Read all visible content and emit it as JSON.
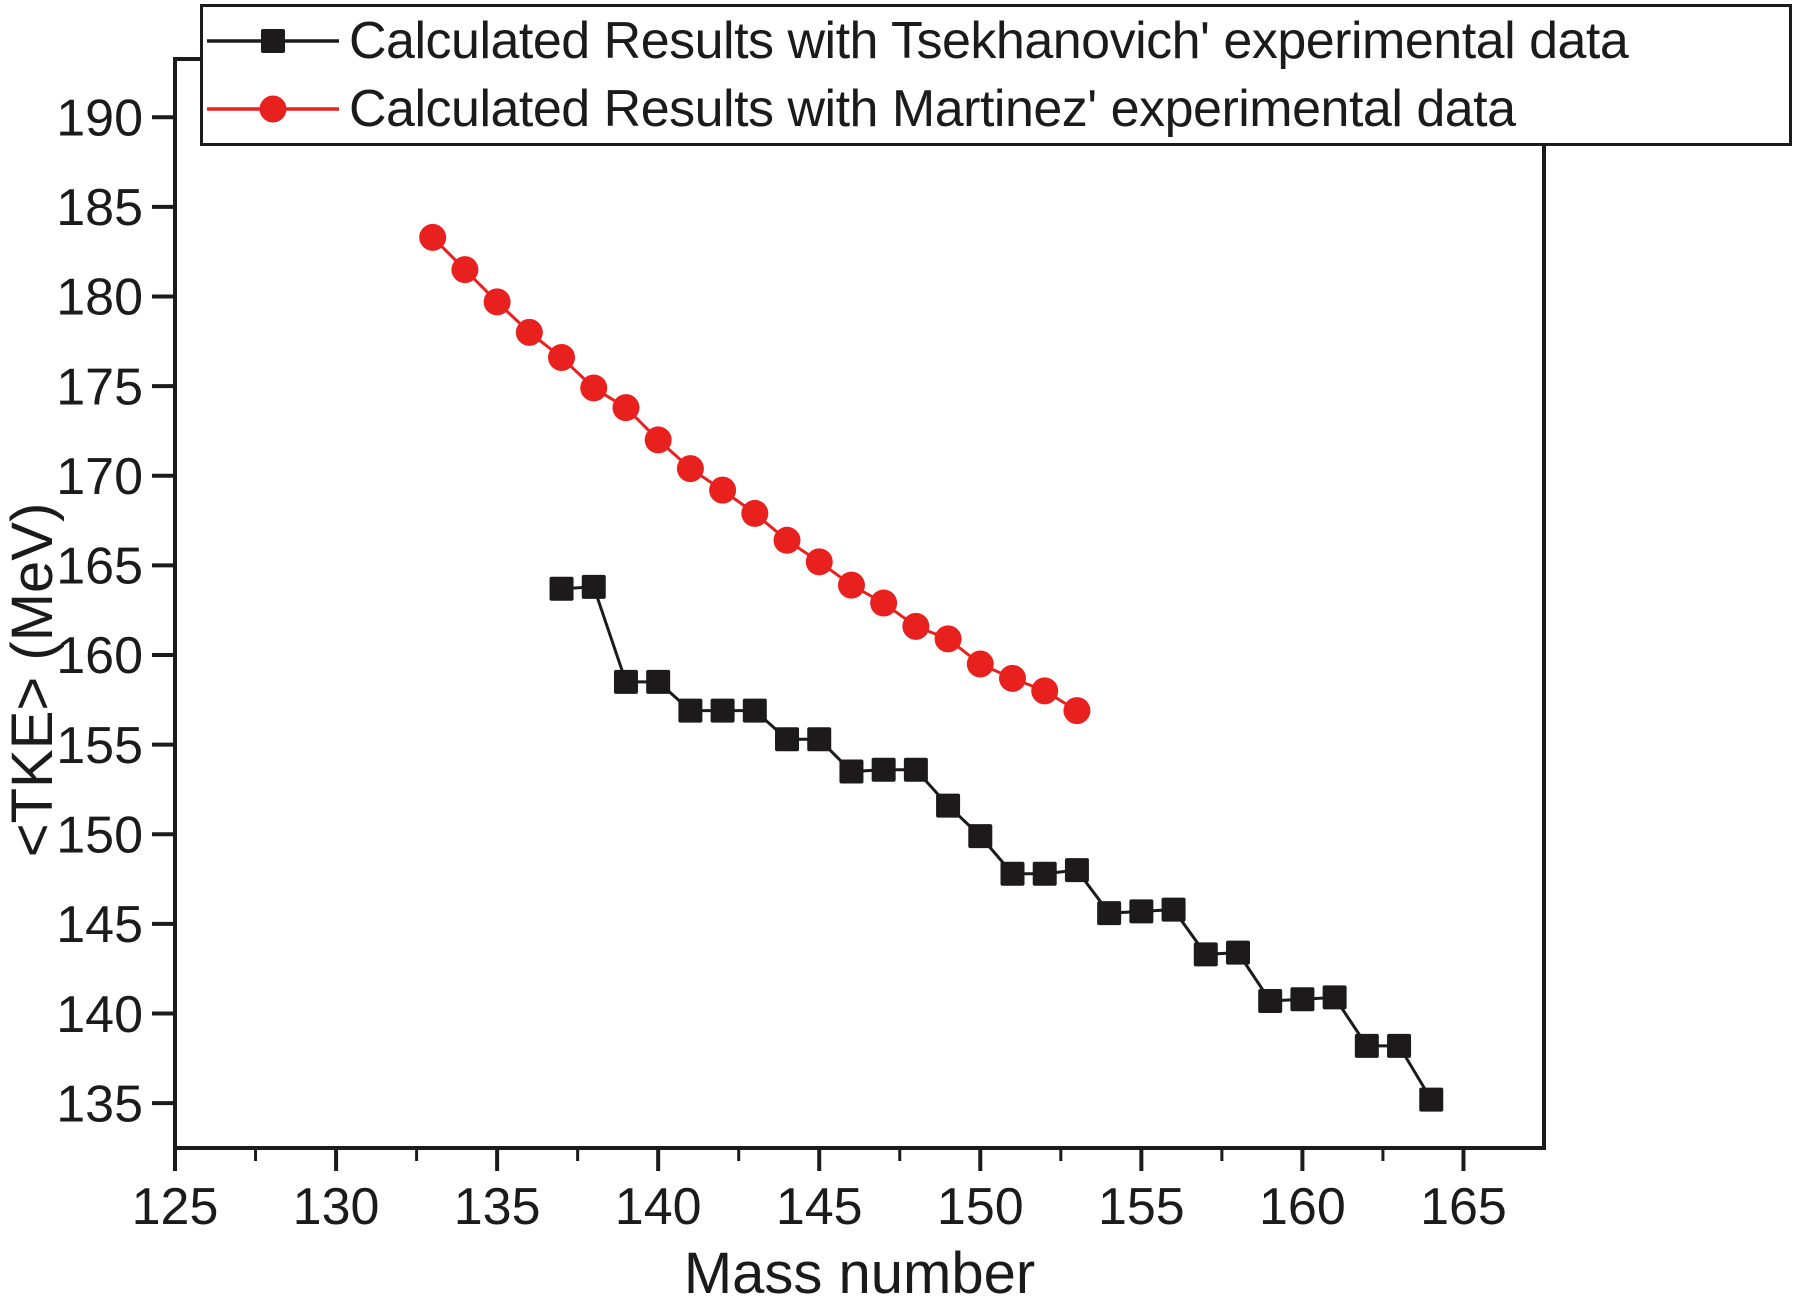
{
  "page": {
    "background": "#ffffff"
  },
  "chart_data": {
    "type": "line",
    "title": "",
    "xlabel": "Mass number",
    "ylabel": "<TKE> (MeV)",
    "xlim": [
      125,
      167.5
    ],
    "ylim": [
      132.5,
      193.25
    ],
    "grid": false,
    "legend_position": "top",
    "axis_color": "#1c1a1b",
    "x_major_ticks": [
      125,
      130,
      135,
      140,
      145,
      150,
      155,
      160,
      165
    ],
    "x_minor_step": 2.5,
    "y_major_ticks": [
      135,
      140,
      145,
      150,
      155,
      160,
      165,
      170,
      175,
      180,
      185,
      190
    ],
    "y_minor_step": 2.5,
    "series": [
      {
        "name": "Calculated Results with Tsekhanovich' experimental data",
        "color": "#1c1a1b",
        "marker": "square",
        "x": [
          137,
          138,
          139,
          140,
          141,
          142,
          143,
          144,
          145,
          146,
          147,
          148,
          149,
          150,
          151,
          152,
          153,
          154,
          155,
          156,
          157,
          158,
          159,
          160,
          161,
          162,
          163,
          164
        ],
        "y": [
          163.7,
          163.8,
          158.5,
          158.5,
          156.9,
          156.9,
          156.9,
          155.3,
          155.3,
          153.5,
          153.6,
          153.6,
          151.6,
          149.9,
          147.8,
          147.8,
          148.0,
          145.6,
          145.7,
          145.8,
          143.3,
          143.4,
          140.7,
          140.8,
          140.9,
          138.2,
          138.2,
          135.2
        ]
      },
      {
        "name": "Calculated Results with Martinez' experimental data",
        "color": "#e8211f",
        "marker": "circle",
        "x": [
          133,
          134,
          135,
          136,
          137,
          138,
          139,
          140,
          141,
          142,
          143,
          144,
          145,
          146,
          147,
          148,
          149,
          150,
          151,
          152,
          153
        ],
        "y": [
          183.3,
          181.5,
          179.7,
          178.0,
          176.6,
          174.9,
          173.8,
          172.0,
          170.4,
          169.2,
          167.9,
          166.4,
          165.2,
          163.9,
          162.9,
          161.6,
          160.9,
          159.5,
          158.7,
          158.0,
          156.9
        ]
      }
    ]
  }
}
